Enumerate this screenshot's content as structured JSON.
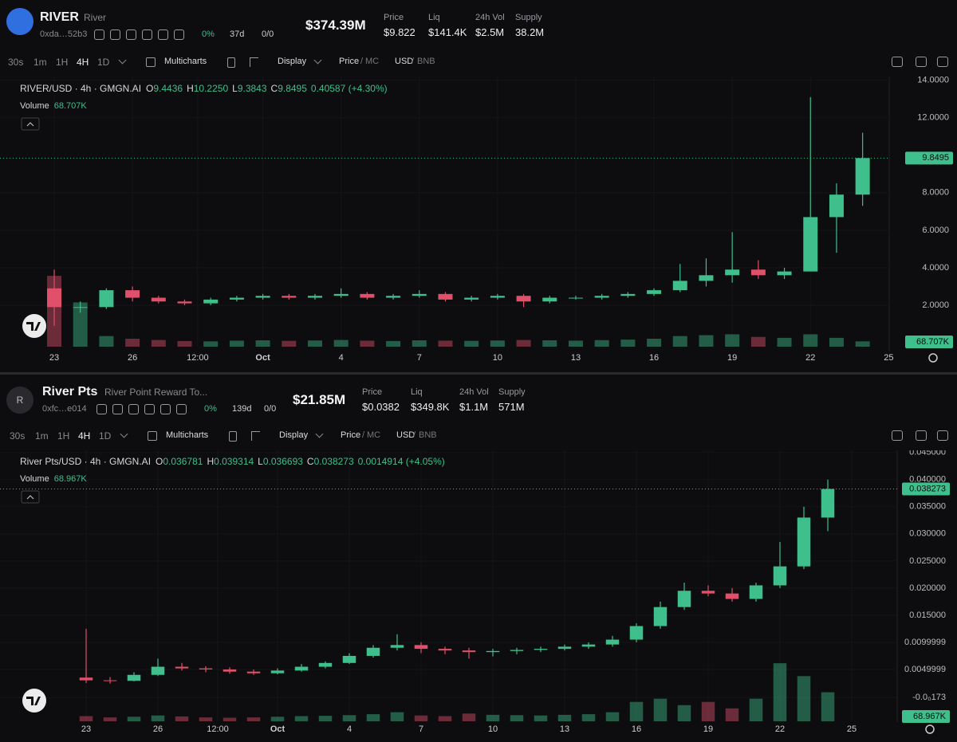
{
  "panels": [
    {
      "header": {
        "logo_text": null,
        "symbol": "RIVER",
        "name": "River",
        "address": "0xda…52b3",
        "change": "0%",
        "age": "37d",
        "holders": "0/0",
        "market_cap": "$374.39M",
        "stats": [
          {
            "label": "Price",
            "value": "$9.822"
          },
          {
            "label": "Liq",
            "value": "$141.4K"
          },
          {
            "label": "24h Vol",
            "value": "$2.5M"
          },
          {
            "label": "Supply",
            "value": "38.2M"
          }
        ]
      },
      "toolbar": {
        "intervals": [
          "30s",
          "1m",
          "1H",
          "4H",
          "1D"
        ],
        "multicharts": "Multicharts",
        "display": "Display",
        "price": "Price",
        "sep": "/",
        "mc": "MC",
        "usd": "USD",
        "bnb": "BNB"
      },
      "chart_data": {
        "type": "candlestick",
        "pair": "RIVER/USD · 4h · GMGN.AI",
        "ohlc": [
          {
            "key": "O",
            "value": "9.4436"
          },
          {
            "key": "H",
            "value": "10.2250"
          },
          {
            "key": "L",
            "value": "9.3843"
          },
          {
            "key": "C",
            "value": "9.8495"
          }
        ],
        "change": "0.40587 (+4.30%)",
        "volume_label": "Volume",
        "volume_value": "68.707K",
        "up_color": "#3fbf8c",
        "down_color": "#e0506a",
        "grid": true,
        "xlim": [
          -2.08,
          32.02
        ],
        "ylim": [
          0,
          14.2
        ],
        "vlim": [
          0,
          4500
        ],
        "xticks": [
          {
            "value": 0,
            "label": "23"
          },
          {
            "value": 3,
            "label": "26"
          },
          {
            "value": 5.5,
            "label": "12:00"
          },
          {
            "value": 8,
            "label": "Oct"
          },
          {
            "value": 11,
            "label": "4"
          },
          {
            "value": 14,
            "label": "7"
          },
          {
            "value": 17,
            "label": "10"
          },
          {
            "value": 20,
            "label": "13"
          },
          {
            "value": 23,
            "label": "16"
          },
          {
            "value": 26,
            "label": "19"
          },
          {
            "value": 29,
            "label": "22"
          },
          {
            "value": 32,
            "label": "25"
          }
        ],
        "yticks": [
          {
            "value": 2,
            "label": "2.0000"
          },
          {
            "value": 4,
            "label": "4.0000"
          },
          {
            "value": 6,
            "label": "6.0000"
          },
          {
            "value": 8,
            "label": "8.0000"
          },
          {
            "value": 12,
            "label": "12.0000"
          },
          {
            "value": 14,
            "label": "14.0000"
          }
        ],
        "last_price": {
          "value": 9.8495,
          "label": "9.8495"
        },
        "x": [
          0,
          1,
          2,
          3,
          4,
          5,
          6,
          7,
          8,
          9,
          10,
          11,
          12,
          13,
          14,
          15,
          16,
          17,
          18,
          19,
          20,
          21,
          22,
          23,
          24,
          25,
          26,
          27,
          28,
          29,
          30,
          31
        ],
        "open": [
          2.9,
          1.9,
          1.9,
          2.8,
          2.4,
          2.2,
          2.1,
          2.3,
          2.4,
          2.5,
          2.4,
          2.5,
          2.6,
          2.4,
          2.5,
          2.6,
          2.3,
          2.4,
          2.5,
          2.2,
          2.4,
          2.4,
          2.5,
          2.6,
          2.8,
          3.3,
          3.6,
          3.9,
          3.6,
          3.8,
          6.7,
          7.9
        ],
        "high": [
          3.9,
          2.2,
          2.9,
          3.0,
          2.5,
          2.3,
          2.4,
          2.5,
          2.6,
          2.6,
          2.6,
          2.9,
          2.7,
          2.6,
          2.8,
          2.7,
          2.5,
          2.6,
          2.6,
          2.5,
          2.5,
          2.6,
          2.7,
          2.9,
          4.2,
          4.5,
          5.9,
          4.4,
          4.0,
          13.1,
          8.5,
          11.2
        ],
        "low": [
          0.9,
          1.6,
          1.8,
          2.2,
          2.1,
          2.0,
          2.0,
          2.2,
          2.3,
          2.3,
          2.3,
          2.4,
          2.3,
          2.3,
          2.4,
          2.2,
          2.2,
          2.3,
          1.9,
          2.1,
          2.3,
          2.3,
          2.4,
          2.5,
          2.7,
          3.0,
          3.2,
          3.4,
          3.4,
          3.8,
          4.8,
          7.3
        ],
        "close": [
          1.9,
          1.9,
          2.8,
          2.4,
          2.2,
          2.1,
          2.3,
          2.4,
          2.5,
          2.4,
          2.5,
          2.6,
          2.4,
          2.5,
          2.6,
          2.3,
          2.4,
          2.5,
          2.2,
          2.4,
          2.4,
          2.5,
          2.6,
          2.8,
          3.3,
          3.6,
          3.9,
          3.6,
          3.8,
          6.7,
          7.9,
          9.8495
        ],
        "volume": [
          4000,
          2500,
          600,
          450,
          380,
          320,
          300,
          340,
          360,
          330,
          350,
          380,
          340,
          320,
          360,
          340,
          330,
          350,
          380,
          360,
          340,
          370,
          400,
          450,
          600,
          650,
          700,
          550,
          500,
          700,
          500,
          300
        ]
      }
    },
    {
      "header": {
        "logo_text": "R",
        "symbol": "River Pts",
        "name": "River Point Reward To...",
        "address": "0xfc…e014",
        "change": "0%",
        "age": "139d",
        "holders": "0/0",
        "market_cap": "$21.85M",
        "stats": [
          {
            "label": "Price",
            "value": "$0.0382"
          },
          {
            "label": "Liq",
            "value": "$349.8K"
          },
          {
            "label": "24h Vol",
            "value": "$1.1M"
          },
          {
            "label": "Supply",
            "value": "571M"
          }
        ]
      },
      "toolbar": {
        "intervals": [
          "30s",
          "1m",
          "1H",
          "4H",
          "1D"
        ],
        "multicharts": "Multicharts",
        "display": "Display",
        "price": "Price",
        "sep": "/",
        "mc": "MC",
        "usd": "USD",
        "bnb": "BNB"
      },
      "chart_data": {
        "type": "candlestick",
        "pair": "River Pts/USD · 4h · GMGN.AI",
        "ohlc": [
          {
            "key": "O",
            "value": "0.036781"
          },
          {
            "key": "H",
            "value": "0.039314"
          },
          {
            "key": "L",
            "value": "0.036693"
          },
          {
            "key": "C",
            "value": "0.038273"
          }
        ],
        "change": "0.0014914 (+4.05%)",
        "volume_label": "Volume",
        "volume_value": "68.967K",
        "up_color": "#3fbf8c",
        "down_color": "#e0506a",
        "grid": true,
        "xlim": [
          -3.6,
          33.9
        ],
        "ylim": [
          0,
          0.0454
        ],
        "vlim": [
          0,
          1050
        ],
        "xticks": [
          {
            "value": 0,
            "label": "23"
          },
          {
            "value": 3,
            "label": "26"
          },
          {
            "value": 5.5,
            "label": "12:00"
          },
          {
            "value": 8,
            "label": "Oct"
          },
          {
            "value": 11,
            "label": "4"
          },
          {
            "value": 14,
            "label": "7"
          },
          {
            "value": 17,
            "label": "10"
          },
          {
            "value": 20,
            "label": "13"
          },
          {
            "value": 23,
            "label": "16"
          },
          {
            "value": 26,
            "label": "19"
          },
          {
            "value": 29,
            "label": "22"
          },
          {
            "value": 32,
            "label": "25"
          }
        ],
        "yticks": [
          {
            "value": -0.000173,
            "label": "-0.0₀173"
          },
          0.0049999,
          0.0099999,
          {
            "value": 0.015,
            "label": "0.015000"
          },
          {
            "value": 0.02,
            "label": "0.020000"
          },
          {
            "value": 0.025,
            "label": "0.025000"
          },
          {
            "value": 0.03,
            "label": "0.030000"
          },
          {
            "value": 0.035,
            "label": "0.035000"
          },
          {
            "value": 0.04,
            "label": "0.040000"
          },
          {
            "value": 0.045,
            "label": "0.045000"
          }
        ],
        "last_price": {
          "value": 0.038273,
          "label": "0.038273"
        },
        "x": [
          0,
          1,
          2,
          3,
          4,
          5,
          6,
          7,
          8,
          9,
          10,
          11,
          12,
          13,
          14,
          15,
          16,
          17,
          18,
          19,
          20,
          21,
          22,
          23,
          24,
          25,
          26,
          27,
          28,
          29,
          30,
          31
        ],
        "open": [
          0.0035,
          0.003,
          0.0029,
          0.004,
          0.0055,
          0.0052,
          0.005,
          0.0046,
          0.0043,
          0.0048,
          0.0055,
          0.0062,
          0.0075,
          0.009,
          0.0095,
          0.0088,
          0.0085,
          0.0082,
          0.0084,
          0.0086,
          0.0088,
          0.0092,
          0.0096,
          0.0105,
          0.013,
          0.0165,
          0.0195,
          0.019,
          0.018,
          0.0205,
          0.024,
          0.033
        ],
        "high": [
          0.0125,
          0.0036,
          0.0045,
          0.007,
          0.0062,
          0.0056,
          0.0054,
          0.005,
          0.0052,
          0.006,
          0.0065,
          0.008,
          0.0095,
          0.0115,
          0.01,
          0.0092,
          0.009,
          0.0088,
          0.009,
          0.0092,
          0.0096,
          0.01,
          0.0112,
          0.0135,
          0.0175,
          0.021,
          0.0205,
          0.02,
          0.021,
          0.0285,
          0.035,
          0.04
        ],
        "low": [
          0.0025,
          0.0024,
          0.0028,
          0.0038,
          0.0048,
          0.0045,
          0.0042,
          0.004,
          0.0041,
          0.0046,
          0.0052,
          0.006,
          0.0072,
          0.0085,
          0.008,
          0.0078,
          0.007,
          0.0074,
          0.0078,
          0.0082,
          0.0085,
          0.0088,
          0.0092,
          0.01,
          0.0125,
          0.016,
          0.0185,
          0.0175,
          0.0175,
          0.02,
          0.0235,
          0.0305
        ],
        "close": [
          0.003,
          0.0029,
          0.004,
          0.0055,
          0.0052,
          0.005,
          0.0046,
          0.0043,
          0.0048,
          0.0055,
          0.0062,
          0.0075,
          0.009,
          0.0095,
          0.0088,
          0.0085,
          0.0082,
          0.0084,
          0.0086,
          0.0088,
          0.0092,
          0.0096,
          0.0105,
          0.013,
          0.0165,
          0.0195,
          0.019,
          0.018,
          0.0205,
          0.024,
          0.033,
          0.038273
        ],
        "volume": [
          80,
          60,
          70,
          90,
          75,
          60,
          55,
          60,
          70,
          80,
          85,
          95,
          110,
          140,
          90,
          80,
          120,
          100,
          95,
          90,
          100,
          110,
          140,
          300,
          350,
          250,
          300,
          200,
          350,
          900,
          700,
          450
        ]
      }
    }
  ]
}
